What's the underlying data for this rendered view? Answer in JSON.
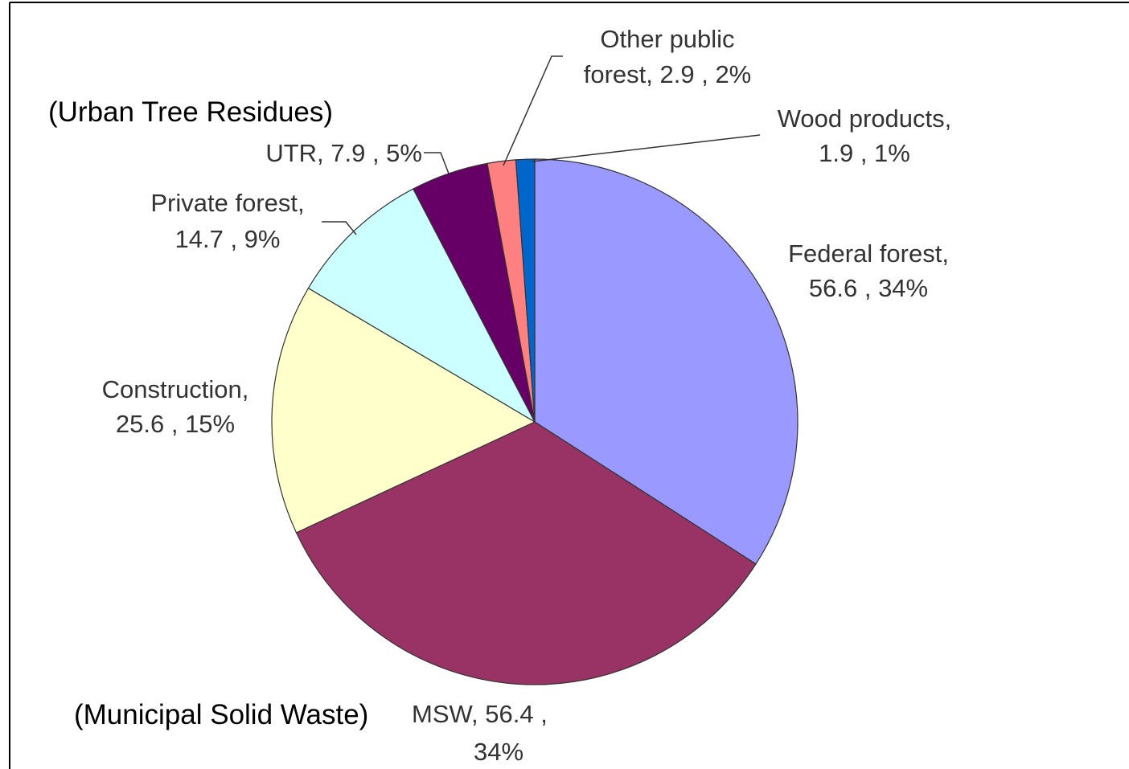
{
  "chart_data": {
    "type": "pie",
    "categories": [
      "Federal forest",
      "MSW",
      "Construction",
      "Private forest",
      "UTR",
      "Other public forest",
      "Wood products"
    ],
    "values": [
      56.6,
      56.4,
      25.6,
      14.7,
      7.9,
      2.9,
      1.9
    ],
    "value_labels": [
      [
        "Federal forest,",
        "56.6 , 34%"
      ],
      [
        "MSW,  56.4 ,",
        "34%"
      ],
      [
        "Construction,",
        "25.6 , 15%"
      ],
      [
        "Private forest,",
        "14.7 , 9%"
      ],
      [
        "UTR,  7.9 , 5%"
      ],
      [
        "Other public",
        "forest,  2.9 , 2%"
      ],
      [
        "Wood products,",
        "1.9 , 1%"
      ]
    ],
    "colors": [
      "#9999ff",
      "#993366",
      "#ffffcc",
      "#ccffff",
      "#660066",
      "#ff8080",
      "#0066cc"
    ],
    "annotations": [
      "(Urban Tree Residues)",
      "(Municipal  Solid Waste)"
    ]
  }
}
